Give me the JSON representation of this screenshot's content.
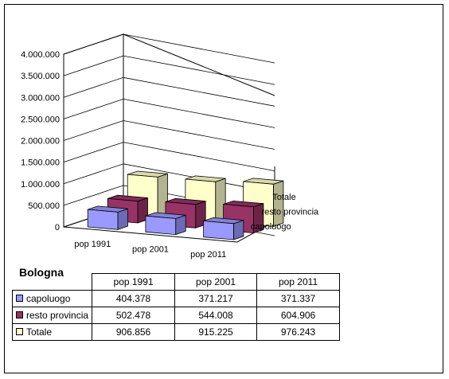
{
  "chart_data": {
    "type": "bar",
    "title": "Bologna",
    "categories": [
      "pop 1991",
      "pop 2001",
      "pop 2011"
    ],
    "series": [
      {
        "name": "capoluogo",
        "color": "#9999ff",
        "values": [
          404378,
          371217,
          371337
        ]
      },
      {
        "name": "resto provincia",
        "color": "#993366",
        "values": [
          502478,
          544008,
          604906
        ]
      },
      {
        "name": "Totale",
        "color": "#ffffcc",
        "values": [
          906856,
          915225,
          976243
        ]
      }
    ],
    "ylim": [
      0,
      4000000
    ],
    "yticks": [
      "0",
      "500.000",
      "1.000.000",
      "1.500.000",
      "2.000.000",
      "2.500.000",
      "3.000.000",
      "3.500.000",
      "4.000.000"
    ],
    "table": {
      "headers": [
        "pop 1991",
        "pop 2001",
        "pop 2011"
      ],
      "rows": [
        {
          "label": "capoluogo",
          "cells": [
            "404.378",
            "371.217",
            "371.337"
          ]
        },
        {
          "label": "resto provincia",
          "cells": [
            "502.478",
            "544.008",
            "604.906"
          ]
        },
        {
          "label": "Totale",
          "cells": [
            "906.856",
            "915.225",
            "976.243"
          ]
        }
      ]
    },
    "grid": true,
    "legend": "data-table"
  }
}
